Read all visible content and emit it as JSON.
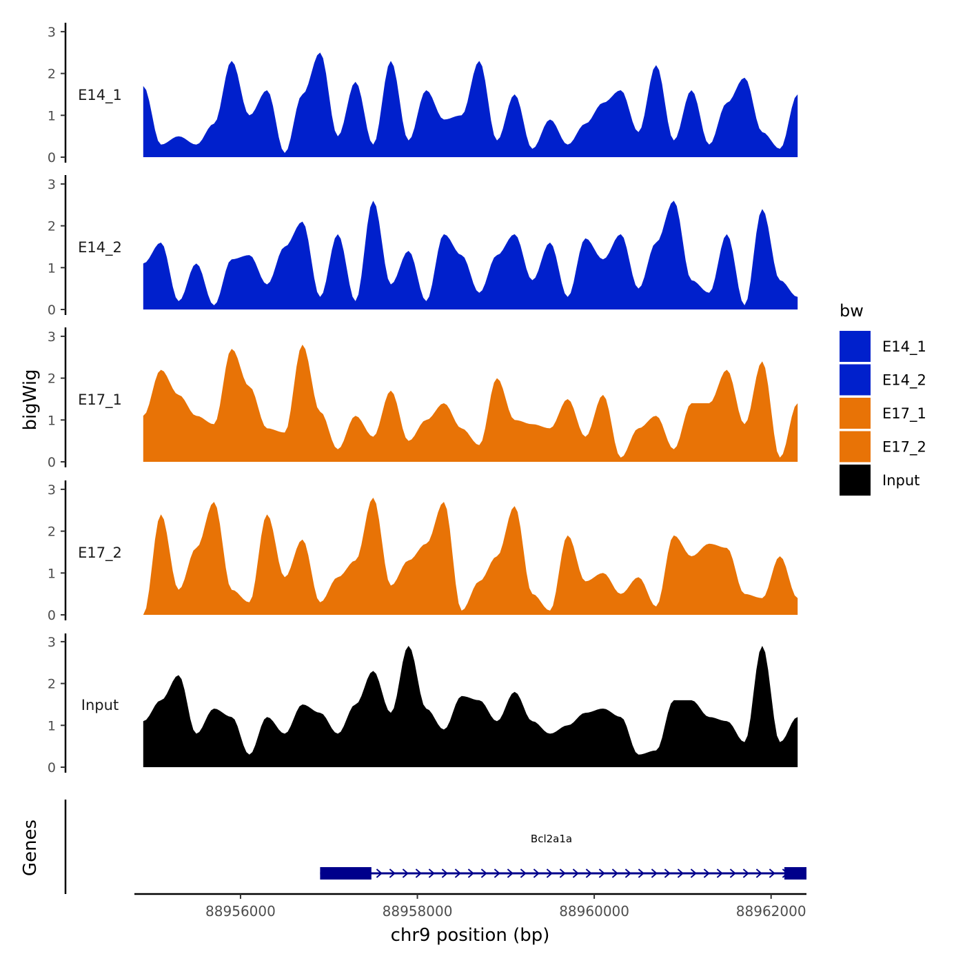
{
  "chart_data": {
    "type": "area",
    "title": "",
    "xlabel": "chr9 position (bp)",
    "ylabel": "bigWig",
    "genes_label": "Genes",
    "xlim": [
      88954800,
      88962400
    ],
    "x_ticks": [
      88956000,
      88958000,
      88960000,
      88962000
    ],
    "x_tick_labels": [
      "88956000",
      "88958000",
      "88960000",
      "88962000"
    ],
    "ylim": [
      0,
      3
    ],
    "y_ticks": [
      0,
      1,
      2,
      3
    ],
    "y_tick_labels": [
      "0",
      "1",
      "2",
      "3"
    ],
    "legend": {
      "title": "bw",
      "position": "right",
      "entries": [
        {
          "label": "E14_1",
          "color": "#0020CC"
        },
        {
          "label": "E14_2",
          "color": "#0020CC"
        },
        {
          "label": "E17_1",
          "color": "#E87306"
        },
        {
          "label": "E17_2",
          "color": "#E87306"
        },
        {
          "label": "Input",
          "color": "#000000"
        }
      ]
    },
    "x": [
      88954900,
      88955100,
      88955300,
      88955500,
      88955700,
      88955900,
      88956100,
      88956300,
      88956500,
      88956700,
      88956900,
      88957100,
      88957300,
      88957500,
      88957700,
      88957900,
      88958100,
      88958300,
      88958500,
      88958700,
      88958900,
      88959100,
      88959300,
      88959500,
      88959700,
      88959900,
      88960100,
      88960300,
      88960500,
      88960700,
      88960900,
      88961100,
      88961300,
      88961500,
      88961700,
      88961900,
      88962100,
      88962300
    ],
    "series": [
      {
        "name": "E14_1",
        "color": "#0020CC",
        "values": [
          1.7,
          0.3,
          0.5,
          0.3,
          0.8,
          2.3,
          1.0,
          1.6,
          0.1,
          1.5,
          2.5,
          0.5,
          1.8,
          0.3,
          2.3,
          0.4,
          1.6,
          0.9,
          1.0,
          2.3,
          0.4,
          1.5,
          0.2,
          0.9,
          0.3,
          0.8,
          1.3,
          1.6,
          0.6,
          2.2,
          0.4,
          1.6,
          0.3,
          1.3,
          1.9,
          0.6,
          0.2,
          1.5
        ]
      },
      {
        "name": "E14_2",
        "color": "#0020CC",
        "values": [
          1.1,
          1.6,
          0.2,
          1.1,
          0.1,
          1.2,
          1.3,
          0.6,
          1.5,
          2.1,
          0.3,
          1.8,
          0.2,
          2.6,
          0.6,
          1.4,
          0.2,
          1.8,
          1.3,
          0.4,
          1.3,
          1.8,
          0.7,
          1.6,
          0.3,
          1.7,
          1.2,
          1.8,
          0.5,
          1.6,
          2.6,
          0.7,
          0.4,
          1.8,
          0.1,
          2.4,
          0.7,
          0.3
        ]
      },
      {
        "name": "E17_1",
        "color": "#E87306",
        "values": [
          1.1,
          2.2,
          1.6,
          1.1,
          0.9,
          2.7,
          1.8,
          0.8,
          0.7,
          2.8,
          1.2,
          0.3,
          1.1,
          0.6,
          1.7,
          0.5,
          1.0,
          1.4,
          0.8,
          0.4,
          2.0,
          1.0,
          0.9,
          0.8,
          1.5,
          0.6,
          1.6,
          0.1,
          0.8,
          1.1,
          0.3,
          1.4,
          1.4,
          2.2,
          0.9,
          2.4,
          0.1,
          1.4
        ]
      },
      {
        "name": "E17_2",
        "color": "#E87306",
        "values": [
          0.0,
          2.4,
          0.6,
          1.6,
          2.7,
          0.6,
          0.3,
          2.4,
          0.9,
          1.8,
          0.3,
          0.9,
          1.3,
          2.8,
          0.7,
          1.3,
          1.7,
          2.7,
          0.1,
          0.8,
          1.4,
          2.6,
          0.5,
          0.1,
          1.9,
          0.8,
          1.0,
          0.5,
          0.9,
          0.2,
          1.9,
          1.4,
          1.7,
          1.6,
          0.5,
          0.4,
          1.4,
          0.4
        ]
      },
      {
        "name": "Input",
        "color": "#000000",
        "values": [
          1.1,
          1.6,
          2.2,
          0.8,
          1.4,
          1.2,
          0.3,
          1.2,
          0.8,
          1.5,
          1.3,
          0.8,
          1.5,
          2.3,
          1.3,
          2.9,
          1.4,
          0.9,
          1.7,
          1.6,
          1.1,
          1.8,
          1.1,
          0.8,
          1.0,
          1.3,
          1.4,
          1.2,
          0.3,
          0.4,
          1.6,
          1.6,
          1.2,
          1.1,
          0.6,
          2.9,
          0.6,
          1.2
        ]
      }
    ],
    "gene": {
      "name": "Bcl2a1a",
      "strand": "+",
      "start": 88956900,
      "end": 88962400,
      "exons": [
        [
          88956900,
          88957480
        ],
        [
          88962150,
          88962400
        ]
      ],
      "color": "#00008B"
    }
  }
}
